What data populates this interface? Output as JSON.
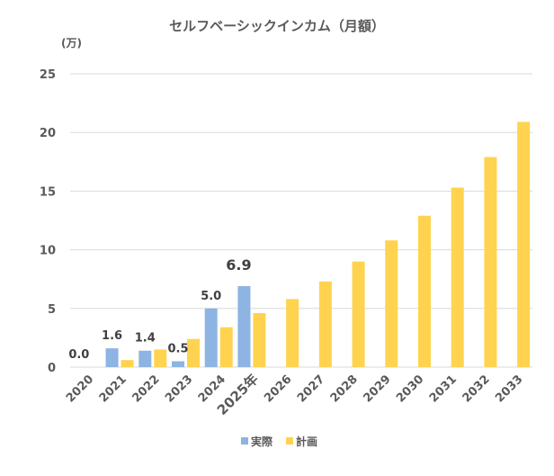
{
  "chart_data": {
    "type": "bar",
    "title": "セルフベーシックインカム（月額）",
    "unit_label": "(万)",
    "categories": [
      "2020",
      "2021",
      "2022",
      "2023",
      "2024",
      "2025年",
      "2026",
      "2027",
      "2028",
      "2029",
      "2030",
      "2031",
      "2032",
      "2033"
    ],
    "highlight_category_index": 5,
    "highlight_color": "#ff0000",
    "ylim": [
      0,
      25
    ],
    "yticks": [
      0,
      5,
      10,
      15,
      20,
      25
    ],
    "grid": true,
    "legend_position": "bottom",
    "series": [
      {
        "name": "実際",
        "color": "#8db4e2",
        "values": [
          0.0,
          1.6,
          1.4,
          0.5,
          5.0,
          6.9,
          null,
          null,
          null,
          null,
          null,
          null,
          null,
          null
        ],
        "data_labels": [
          "0.0",
          "1.6",
          "1.4",
          "0.5",
          "5.0",
          "6.9",
          "",
          "",
          "",
          "",
          "",
          "",
          "",
          ""
        ]
      },
      {
        "name": "計画",
        "color": "#ffd34f",
        "values": [
          0,
          0.6,
          1.5,
          2.4,
          3.4,
          4.6,
          5.8,
          7.3,
          9.0,
          10.8,
          12.9,
          15.3,
          17.9,
          20.9
        ]
      }
    ]
  }
}
